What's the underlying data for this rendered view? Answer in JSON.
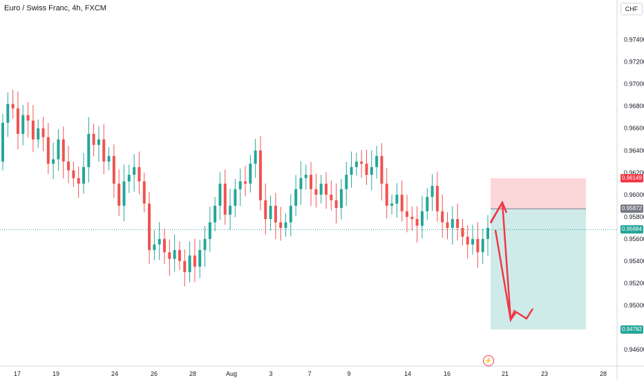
{
  "header": {
    "title": "Euro / Swiss Franc, 4h, FXCM",
    "currency": "CHF"
  },
  "alert_icon": "lightning-icon",
  "price_tags": [
    {
      "label": "0.96149",
      "value": 0.96149,
      "color": "#f23645",
      "text_color": "#ffffff"
    },
    {
      "label": "0.95872",
      "value": 0.95872,
      "color": "#787b86",
      "text_color": "#ffffff"
    },
    {
      "label": "0.95684",
      "value": 0.95684,
      "color": "#26a69a",
      "text_color": "#ffffff"
    },
    {
      "label": "0.94782",
      "value": 0.94782,
      "color": "#26a69a",
      "text_color": "#ffffff"
    }
  ],
  "chart_data": {
    "type": "candlestick",
    "y_range": [
      0.9445,
      0.9776
    ],
    "x_tick_labels": [
      "17",
      "19",
      "24",
      "26",
      "28",
      "Aug",
      "3",
      "7",
      "9",
      "14",
      "16",
      "21",
      "23",
      "28"
    ],
    "y_tick_labels": [
      "0.97400",
      "0.97200",
      "0.97000",
      "0.96800",
      "0.96600",
      "0.96400",
      "0.96200",
      "0.96000",
      "0.95800",
      "0.95600",
      "0.95400",
      "0.95200",
      "0.95000",
      "0.94600"
    ],
    "colors": {
      "up": "#26a69a",
      "down": "#ef5350"
    },
    "close_series": [
      0.9665,
      0.9682,
      0.9678,
      0.9655,
      0.9672,
      0.9667,
      0.965,
      0.966,
      0.9652,
      0.9628,
      0.9632,
      0.965,
      0.963,
      0.9622,
      0.9615,
      0.961,
      0.9625,
      0.9655,
      0.9645,
      0.965,
      0.963,
      0.9635,
      0.961,
      0.959,
      0.9612,
      0.9618,
      0.9625,
      0.9612,
      0.9592,
      0.955,
      0.9555,
      0.956,
      0.9548,
      0.9542,
      0.955,
      0.954,
      0.953,
      0.9545,
      0.9535,
      0.955,
      0.956,
      0.9575,
      0.959,
      0.961,
      0.9582,
      0.959,
      0.9605,
      0.9612,
      0.961,
      0.9628,
      0.964,
      0.9595,
      0.9578,
      0.959,
      0.9575,
      0.957,
      0.9575,
      0.959,
      0.9605,
      0.9615,
      0.9618,
      0.9605,
      0.96,
      0.961,
      0.96,
      0.9595,
      0.9588,
      0.9605,
      0.9618,
      0.9625,
      0.963,
      0.9628,
      0.9618,
      0.9625,
      0.9635,
      0.961,
      0.959,
      0.9592,
      0.96,
      0.9585,
      0.958,
      0.9578,
      0.9572,
      0.9585,
      0.9598,
      0.9608,
      0.9585,
      0.9575,
      0.957,
      0.9578,
      0.957,
      0.9562,
      0.9555,
      0.956,
      0.9548,
      0.956,
      0.957
    ],
    "series_start_open": 0.963,
    "trade_box": {
      "entry": 0.95872,
      "stop": 0.96149,
      "target": 0.94782
    },
    "annotation_arrow": {
      "points": [
        [
          0.9575,
          0
        ],
        [
          0.9593,
          1
        ],
        [
          0.9487,
          3
        ],
        [
          0.9494,
          4
        ],
        [
          0.9488,
          5
        ],
        [
          0.9497,
          6
        ]
      ],
      "color": "#f23645"
    },
    "current_price": 0.95684
  }
}
